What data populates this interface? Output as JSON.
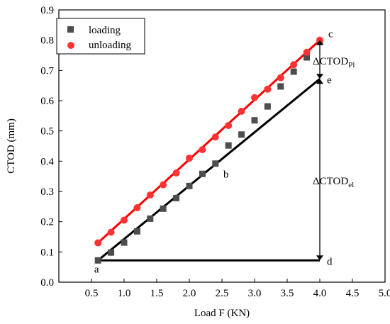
{
  "chart_data": {
    "type": "scatter",
    "xlabel": "Load F (KN)",
    "ylabel": "CTOD (mm)",
    "xlim": [
      0.0,
      5.0
    ],
    "ylim": [
      0.0,
      0.9
    ],
    "xticks": [
      "0.5",
      "1.0",
      "1.5",
      "2.0",
      "2.5",
      "3.0",
      "3.5",
      "4.0",
      "4.5",
      "5.0"
    ],
    "xtick_values": [
      0.5,
      1.0,
      1.5,
      2.0,
      2.5,
      3.0,
      3.5,
      4.0,
      4.5,
      5.0
    ],
    "yticks": [
      "0.0",
      "0.1",
      "0.2",
      "0.3",
      "0.4",
      "0.5",
      "0.6",
      "0.7",
      "0.8",
      "0.9"
    ],
    "ytick_values": [
      0.0,
      0.1,
      0.2,
      0.3,
      0.4,
      0.5,
      0.6,
      0.7,
      0.8,
      0.9
    ],
    "grid": false,
    "legend_placement": "top-left",
    "series": [
      {
        "name": "loading",
        "marker": "square",
        "color": "#4d4d4d",
        "x": [
          0.6,
          0.8,
          1.0,
          1.2,
          1.4,
          1.6,
          1.8,
          2.0,
          2.2,
          2.4,
          2.6,
          2.8,
          3.0,
          3.2,
          3.4,
          3.6,
          3.8,
          4.0
        ],
        "y": [
          0.072,
          0.098,
          0.131,
          0.168,
          0.21,
          0.243,
          0.278,
          0.318,
          0.358,
          0.392,
          0.452,
          0.488,
          0.535,
          0.581,
          0.647,
          0.696,
          0.743,
          0.797
        ]
      },
      {
        "name": "unloading",
        "marker": "circle",
        "color": "#ff3333",
        "x": [
          0.6,
          0.8,
          1.0,
          1.2,
          1.4,
          1.6,
          1.8,
          2.0,
          2.2,
          2.4,
          2.6,
          2.8,
          3.0,
          3.2,
          3.4,
          3.6,
          3.8,
          4.0
        ],
        "y": [
          0.13,
          0.165,
          0.205,
          0.246,
          0.288,
          0.322,
          0.361,
          0.41,
          0.438,
          0.48,
          0.518,
          0.565,
          0.61,
          0.638,
          0.676,
          0.719,
          0.76,
          0.8
        ]
      }
    ],
    "lines": [
      {
        "name": "",
        "color": "#ff0000",
        "from": [
          0.6,
          0.13
        ],
        "to": [
          4.0,
          0.8
        ]
      },
      {
        "name": "",
        "color": "#000000",
        "from": [
          0.6,
          0.072
        ],
        "to": [
          4.0,
          0.672
        ]
      },
      {
        "name": "",
        "color": "#000000",
        "from": [
          0.6,
          0.072
        ],
        "to": [
          4.0,
          0.072
        ]
      }
    ],
    "arrows": [
      {
        "x": 4.0,
        "from": 0.8,
        "to": 0.672
      },
      {
        "x": 4.0,
        "from": 0.672,
        "to": 0.072
      }
    ],
    "annotations": [
      {
        "text": "a",
        "x": 0.6,
        "y": 0.072
      },
      {
        "text": "b",
        "x": 2.4,
        "y": 0.392
      },
      {
        "text": "c",
        "x": 4.0,
        "y": 0.8
      },
      {
        "text": "d",
        "x": 4.0,
        "y": 0.072
      },
      {
        "text": "e",
        "x": 4.0,
        "y": 0.672
      }
    ],
    "delta_labels": [
      {
        "base": "ΔCTOD",
        "sub": "Pl",
        "near": "upper"
      },
      {
        "base": "ΔCTOD",
        "sub": "el",
        "near": "lower"
      }
    ]
  },
  "colors": {
    "loading": "#4d4d4d",
    "unloading": "#ff3333",
    "unloading_line": "#ff0000",
    "black": "#000000"
  }
}
